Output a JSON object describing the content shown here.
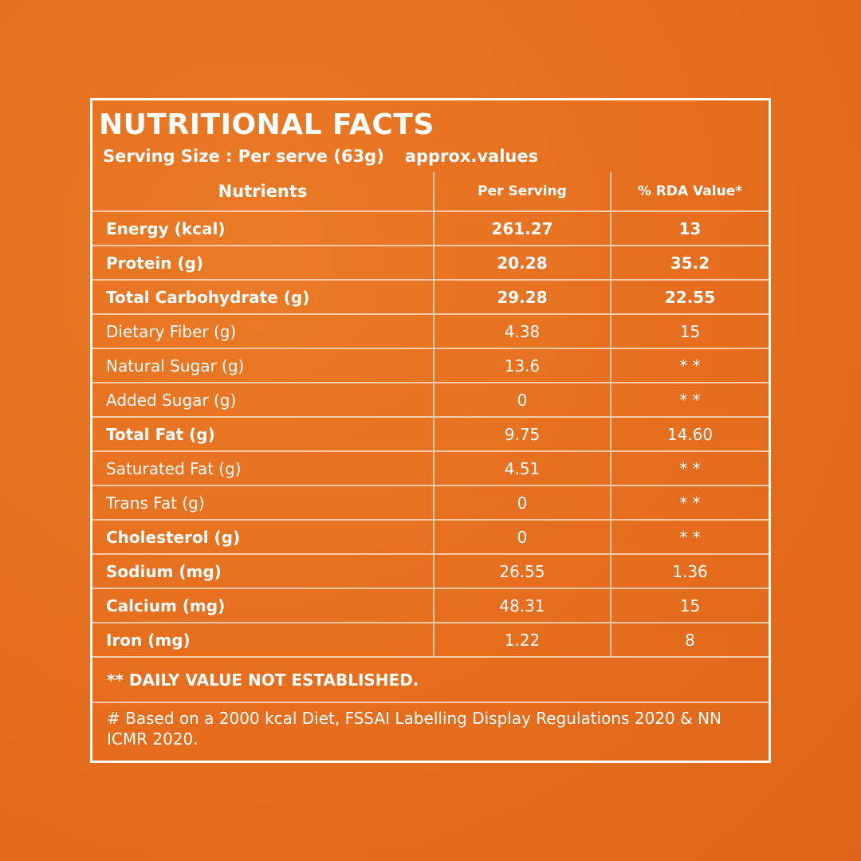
{
  "header": {
    "title": "NUTRITIONAL FACTS",
    "serving_size": "Serving Size : Per serve (63g)",
    "note": "approx.values"
  },
  "table": {
    "columns": [
      "Nutrients",
      "Per Serving",
      "% RDA Value*"
    ],
    "rows": [
      [
        "Energy (kcal)",
        "261.27",
        "13"
      ],
      [
        "Protein (g)",
        "20.28",
        "35.2"
      ],
      [
        "Total Carbohydrate (g)",
        "29.28",
        "22.55"
      ],
      [
        "Dietary Fiber (g)",
        "4.38",
        "15"
      ],
      [
        "Natural Sugar (g)",
        "13.6",
        "* *"
      ],
      [
        "Added Sugar (g)",
        "0",
        "* *"
      ],
      [
        "Total Fat (g)",
        "9.75",
        "14.60"
      ],
      [
        "Saturated Fat (g)",
        "4.51",
        "* *"
      ],
      [
        "Trans Fat (g)",
        "0",
        "* *"
      ],
      [
        "Cholesterol (g)",
        "0",
        "* *"
      ],
      [
        "Sodium (mg)",
        "26.55",
        "1.36"
      ],
      [
        "Calcium (mg)",
        "48.31",
        "15"
      ],
      [
        "Iron (mg)",
        "1.22",
        "8"
      ]
    ]
  },
  "footnotes": [
    "** DAILY VALUE NOT ESTABLISHED.",
    "# Based on a 2000 kcal Diet, FSSAI Labelling Display Regulations 2020 & NN ICMR 2020."
  ]
}
